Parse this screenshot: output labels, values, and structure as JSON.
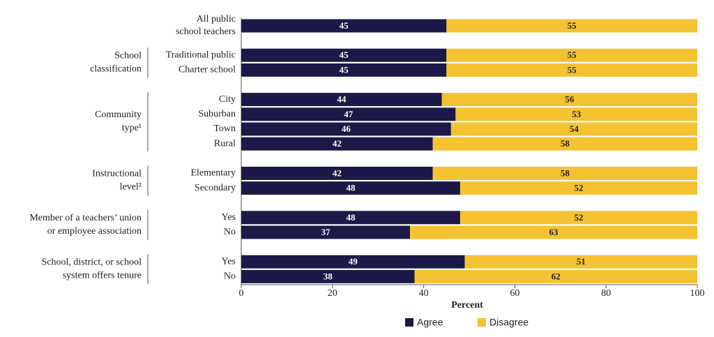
{
  "chart_data": {
    "type": "bar",
    "orientation": "horizontal",
    "stacked": true,
    "groups": [
      {
        "categories": [
          [
            "All public",
            "school teachers"
          ]
        ]
      },
      {
        "label": [
          "School",
          "classification"
        ],
        "categories": [
          "Traditional public",
          "Charter school"
        ]
      },
      {
        "label": [
          "Community",
          "type¹"
        ],
        "categories": [
          "City",
          "Suburban",
          "Town",
          "Rural"
        ]
      },
      {
        "label": [
          "Instructional",
          "level²"
        ],
        "categories": [
          "Elementary",
          "Secondary"
        ]
      },
      {
        "label": [
          "Member of a teachers’ union",
          "or employee association"
        ],
        "categories": [
          "Yes",
          "No"
        ]
      },
      {
        "label": [
          "School, district, or school",
          "system offers tenure"
        ],
        "categories": [
          "Yes",
          "No"
        ]
      }
    ],
    "series": [
      {
        "name": "Agree",
        "color": "#1c1847",
        "values": [
          45,
          45,
          45,
          44,
          47,
          46,
          42,
          42,
          48,
          48,
          37,
          49,
          38
        ]
      },
      {
        "name": "Disagree",
        "color": "#f5c232",
        "values": [
          55,
          55,
          55,
          56,
          53,
          54,
          58,
          58,
          52,
          52,
          63,
          51,
          62
        ]
      }
    ],
    "xlabel": "Percent",
    "xlim": [
      0,
      100
    ],
    "xticks": [
      0,
      20,
      40,
      60,
      80,
      100
    ],
    "legend": "bottom"
  }
}
